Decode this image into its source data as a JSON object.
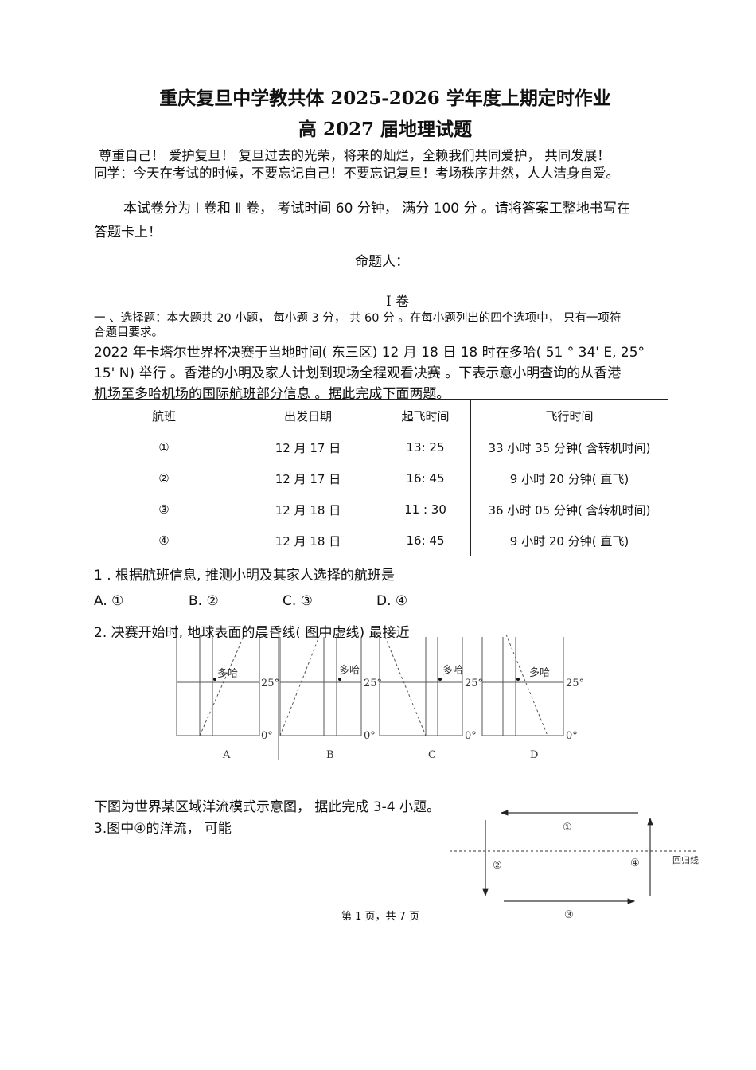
{
  "header": {
    "title1": "重庆复旦中学教共体 2025-2026 学年度上期定时作业",
    "title2": "高 2027 届地理试题"
  },
  "motto": [
    "尊重自己！ 爱护复旦！ 复旦过去的光荣，将来的灿烂，全赖我们共同爱护， 共同发展！",
    "同学：今天在考试的时候，不要忘记自己！不要忘记复旦！考场秩序井然，人人洁身自爱。"
  ],
  "instructions": [
    "本试卷分为 I 卷和 Ⅱ 卷， 考试时间 60 分钟， 满分 100 分 。请将答案工整地书写在",
    "答题卡上！"
  ],
  "author_label": "命题人：",
  "section_title": "I 卷",
  "section_desc": [
    "一 、选择题：本大题共 20 小题， 每小题 3 分， 共 60 分 。在每小题列出的四个选项中， 只有一项符",
    "合题目要求。"
  ],
  "intro": [
    "2022 年卡塔尔世界杯决赛于当地时间( 东三区) 12 月  18 日  18 时在多哈( 51 °   34' E, 25°",
    "15' N) 举行 。香港的小明及家人计划到现场全程观看决赛 。下表示意小明查询的从香港",
    "机场至多哈机场的国际航班部分信息 。据此完成下面两题。"
  ],
  "table": {
    "headers": [
      "航班",
      "出发日期",
      "起飞时间",
      "飞行时间"
    ],
    "rows": [
      [
        "①",
        "12 月  17 日",
        "13: 25",
        "33 小时 35 分钟( 含转机时间)"
      ],
      [
        "②",
        "12 月  17 日",
        "16: 45",
        "9 小时 20 分钟( 直飞)"
      ],
      [
        "③",
        "12 月  18 日",
        "11 : 30",
        "36 小时 05 分钟( 含转机时间)"
      ],
      [
        "④",
        "12 月  18 日",
        "16: 45",
        "9 小时 20 分钟( 直飞)"
      ]
    ]
  },
  "q1": {
    "stem": "1 . 根据航班信息, 推测小明及其家人选择的航班是",
    "options": [
      "A. ①",
      "B. ②",
      "C. ③",
      "D. ④"
    ]
  },
  "q2": {
    "stem": "2. 决赛开始时, 地球表面的晨昏线( 图中虚线) 最接近",
    "city": "多哈",
    "lat25": "25°",
    "lat0": "0°",
    "panels": [
      "A",
      "B",
      "C",
      "D"
    ]
  },
  "q3_intro": "下图为世界某区域洋流模式示意图， 据此完成 3-4 小题。",
  "q3_stem": "3.图中④的洋流， 可能",
  "ocean": {
    "labels": [
      "①",
      "②",
      "③",
      "④"
    ],
    "line_label": "回归线"
  },
  "footer": "第 1 页，共 7 页"
}
